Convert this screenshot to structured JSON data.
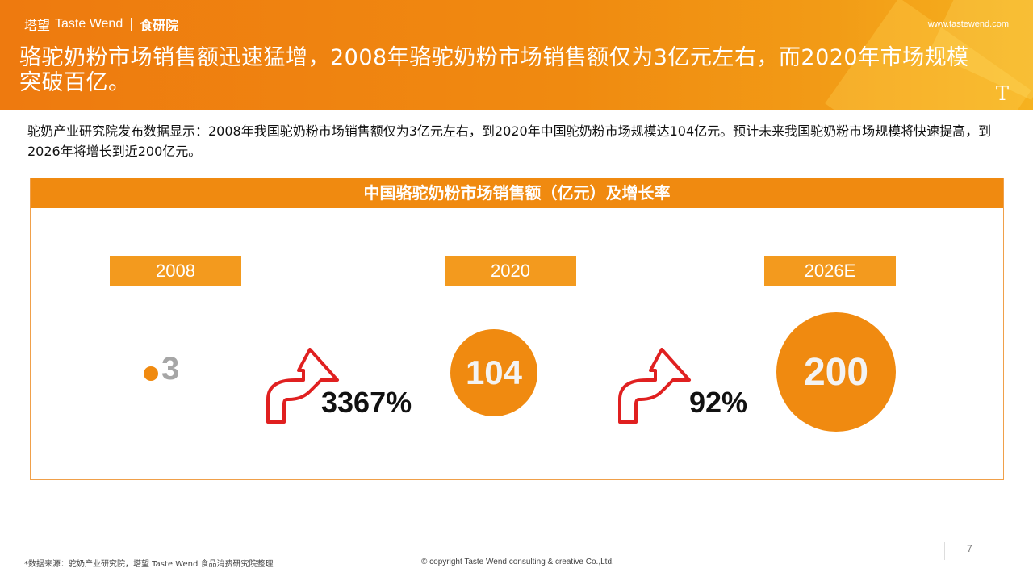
{
  "header": {
    "brand_cn": "塔望",
    "brand_en": "Taste Wend",
    "institute": "食研院",
    "website": "www.tastewend.com",
    "title": "骆驼奶粉市场销售额迅速猛增，2008年骆驼奶粉市场销售额仅为3亿元左右，而2020年市场规模突破百亿。",
    "logo_letter": "T"
  },
  "intro": "驼奶产业研究院发布数据显示：2008年我国驼奶粉市场销售额仅为3亿元左右，到2020年中国驼奶粉市场规模达104亿元。预计未来我国驼奶粉市场规模将快速提高，到2026年将增长到近200亿元。",
  "chart": {
    "title": "中国骆驼奶粉市场销售额（亿元）及增长率"
  },
  "chart_data": {
    "type": "bubble",
    "title": "中国骆驼奶粉市场销售额（亿元）及增长率",
    "categories": [
      "2008",
      "2020",
      "2026E"
    ],
    "values": [
      3,
      104,
      200
    ],
    "value_labels": [
      "3",
      "104",
      "200"
    ],
    "growth_rates": [
      "3367%",
      "92%"
    ],
    "colors": {
      "accent": "#f08a10",
      "label_bg": "#f39a1e",
      "arrow": "#e02020"
    }
  },
  "footer": {
    "source": "*数据来源：驼奶产业研究院，塔望 Taste Wend 食品消费研究院整理",
    "copyright": "© copyright Taste Wend consulting & creative Co.,Ltd.",
    "page": "7"
  }
}
